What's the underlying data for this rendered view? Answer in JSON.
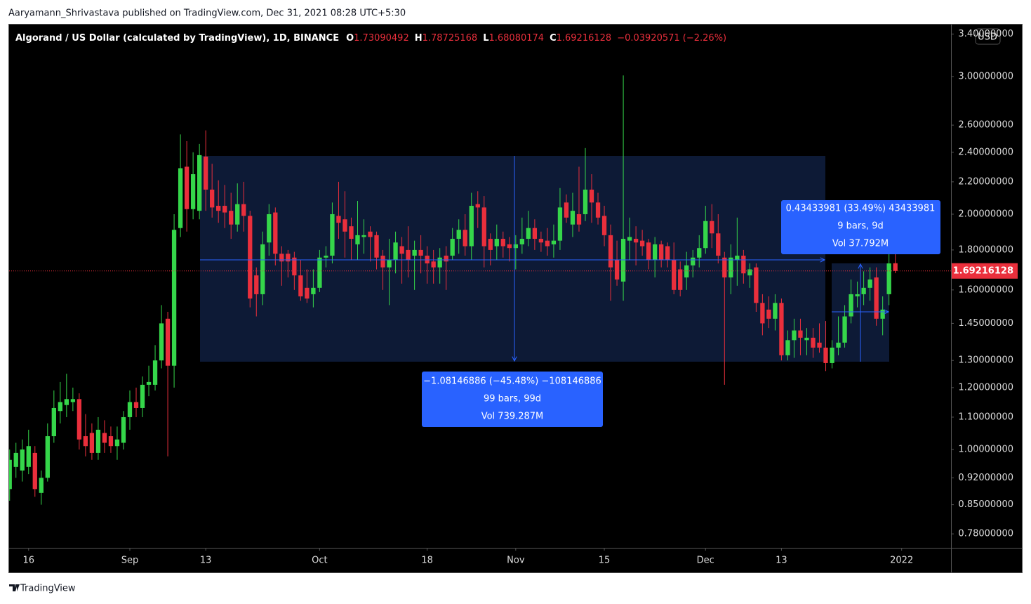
{
  "header": "Aaryamann_Shrivastava published on TradingView.com, Dec 31, 2021 08:28 UTC+5:30",
  "footer": "TradingView",
  "currency_button": "USD",
  "chart_data": {
    "type": "candlestick",
    "title": "Algorand / US Dollar (calculated by TradingView), 1D, BINANCE",
    "ohlc_labels": [
      "O",
      "H",
      "L",
      "C"
    ],
    "change": "−0.03920571 (−2.26%)",
    "up_color": "#35d64a",
    "down_color": "#ea2f3c",
    "log_scale": true,
    "grid": false,
    "ylim": [
      0.7486,
      3.496
    ],
    "yticks": [
      {
        "value": 0.78,
        "label": "0.78000000"
      },
      {
        "value": 0.85,
        "label": "0.85000000"
      },
      {
        "value": 0.92,
        "label": "0.92000000"
      },
      {
        "value": 1.0,
        "label": "1.00000000"
      },
      {
        "value": 1.1,
        "label": "1.10000000"
      },
      {
        "value": 1.2,
        "label": "1.20000000"
      },
      {
        "value": 1.3,
        "label": "1.30000000"
      },
      {
        "value": 1.45,
        "label": "1.45000000"
      },
      {
        "value": 1.6,
        "label": "1.60000000"
      },
      {
        "value": 1.8,
        "label": "1.80000000"
      },
      {
        "value": 2.0,
        "label": "2.00000000"
      },
      {
        "value": 2.2,
        "label": "2.20000000"
      },
      {
        "value": 2.4,
        "label": "2.40000000"
      },
      {
        "value": 2.6,
        "label": "2.60000000"
      },
      {
        "value": 3.0,
        "label": "3.00000000"
      },
      {
        "value": 3.4,
        "label": "3.40000000"
      }
    ],
    "xlim": [
      -0.08,
      148.8
    ],
    "xticks": [
      {
        "value": 3,
        "label": "16"
      },
      {
        "value": 19,
        "label": "Sep"
      },
      {
        "value": 31,
        "label": "13"
      },
      {
        "value": 49,
        "label": "Oct"
      },
      {
        "value": 66,
        "label": "18"
      },
      {
        "value": 80,
        "label": "Nov"
      },
      {
        "value": 94,
        "label": "15"
      },
      {
        "value": 110,
        "label": "Dec"
      },
      {
        "value": 122,
        "label": "13"
      },
      {
        "value": 141,
        "label": "2022"
      }
    ],
    "ohlc": [
      [
        0.89,
        1.0,
        0.86,
        0.97
      ],
      [
        0.95,
        1.02,
        0.92,
        0.99
      ],
      [
        0.94,
        1.03,
        0.91,
        1.0
      ],
      [
        0.95,
        1.06,
        0.93,
        1.01
      ],
      [
        0.99,
        1.01,
        0.87,
        0.89
      ],
      [
        0.88,
        0.94,
        0.85,
        0.92
      ],
      [
        0.92,
        1.08,
        0.91,
        1.04
      ],
      [
        1.04,
        1.19,
        1.02,
        1.13
      ],
      [
        1.12,
        1.22,
        1.08,
        1.15
      ],
      [
        1.14,
        1.25,
        1.1,
        1.16
      ],
      [
        1.15,
        1.2,
        1.12,
        1.16
      ],
      [
        1.16,
        1.18,
        1.0,
        1.03
      ],
      [
        1.04,
        1.11,
        0.98,
        1.01
      ],
      [
        1.05,
        1.08,
        0.97,
        0.99
      ],
      [
        0.99,
        1.1,
        0.97,
        1.06
      ],
      [
        1.05,
        1.09,
        0.99,
        1.02
      ],
      [
        1.04,
        1.07,
        0.99,
        1.01
      ],
      [
        1.01,
        1.07,
        0.97,
        1.03
      ],
      [
        1.02,
        1.12,
        1.0,
        1.1
      ],
      [
        1.1,
        1.19,
        1.06,
        1.15
      ],
      [
        1.15,
        1.2,
        1.1,
        1.13
      ],
      [
        1.13,
        1.24,
        1.1,
        1.21
      ],
      [
        1.21,
        1.28,
        1.17,
        1.22
      ],
      [
        1.21,
        1.36,
        1.19,
        1.3
      ],
      [
        1.3,
        1.53,
        1.27,
        1.45
      ],
      [
        1.47,
        1.5,
        0.98,
        1.28
      ],
      [
        1.28,
        2.0,
        1.2,
        1.91
      ],
      [
        1.92,
        2.53,
        1.87,
        2.29
      ],
      [
        2.3,
        2.48,
        1.9,
        2.03
      ],
      [
        2.03,
        2.4,
        1.97,
        2.25
      ],
      [
        2.02,
        2.46,
        1.97,
        2.38
      ],
      [
        2.37,
        2.56,
        2.02,
        2.15
      ],
      [
        2.15,
        2.32,
        1.98,
        2.04
      ],
      [
        2.05,
        2.21,
        1.95,
        2.02
      ],
      [
        2.05,
        2.18,
        1.92,
        2.01
      ],
      [
        2.02,
        2.13,
        1.86,
        1.94
      ],
      [
        1.94,
        2.19,
        1.9,
        2.06
      ],
      [
        2.06,
        2.2,
        1.9,
        1.99
      ],
      [
        1.99,
        2.02,
        1.52,
        1.56
      ],
      [
        1.67,
        1.71,
        1.48,
        1.58
      ],
      [
        1.58,
        1.9,
        1.53,
        1.83
      ],
      [
        1.84,
        2.06,
        1.77,
        2.0
      ],
      [
        2.01,
        2.04,
        1.72,
        1.78
      ],
      [
        1.78,
        1.82,
        1.62,
        1.74
      ],
      [
        1.78,
        1.8,
        1.66,
        1.74
      ],
      [
        1.76,
        1.79,
        1.6,
        1.67
      ],
      [
        1.67,
        1.75,
        1.55,
        1.57
      ],
      [
        1.61,
        1.7,
        1.54,
        1.56
      ],
      [
        1.58,
        1.7,
        1.52,
        1.61
      ],
      [
        1.61,
        1.8,
        1.59,
        1.76
      ],
      [
        1.76,
        1.82,
        1.71,
        1.77
      ],
      [
        1.77,
        2.07,
        1.73,
        2.0
      ],
      [
        1.99,
        2.2,
        1.86,
        1.95
      ],
      [
        1.97,
        2.14,
        1.76,
        1.9
      ],
      [
        1.93,
        1.98,
        1.75,
        1.86
      ],
      [
        1.83,
        2.08,
        1.75,
        1.88
      ],
      [
        1.87,
        1.97,
        1.78,
        1.88
      ],
      [
        1.9,
        1.93,
        1.74,
        1.87
      ],
      [
        1.88,
        1.9,
        1.7,
        1.76
      ],
      [
        1.77,
        1.8,
        1.6,
        1.71
      ],
      [
        1.71,
        1.86,
        1.53,
        1.75
      ],
      [
        1.75,
        1.9,
        1.68,
        1.84
      ],
      [
        1.82,
        1.87,
        1.63,
        1.78
      ],
      [
        1.8,
        1.93,
        1.66,
        1.75
      ],
      [
        1.77,
        1.85,
        1.6,
        1.8
      ],
      [
        1.8,
        1.88,
        1.68,
        1.77
      ],
      [
        1.77,
        1.82,
        1.63,
        1.73
      ],
      [
        1.74,
        1.8,
        1.63,
        1.71
      ],
      [
        1.71,
        1.81,
        1.63,
        1.76
      ],
      [
        1.77,
        1.82,
        1.6,
        1.74
      ],
      [
        1.77,
        1.92,
        1.75,
        1.86
      ],
      [
        1.86,
        1.97,
        1.78,
        1.91
      ],
      [
        1.91,
        2.0,
        1.77,
        1.82
      ],
      [
        1.82,
        2.13,
        1.75,
        2.05
      ],
      [
        2.06,
        2.14,
        1.92,
        2.04
      ],
      [
        2.04,
        2.11,
        1.71,
        1.82
      ],
      [
        1.86,
        1.89,
        1.72,
        1.8
      ],
      [
        1.82,
        1.94,
        1.75,
        1.86
      ],
      [
        1.86,
        1.9,
        1.76,
        1.82
      ],
      [
        1.83,
        1.87,
        1.74,
        1.81
      ],
      [
        1.81,
        1.88,
        1.7,
        1.83
      ],
      [
        1.83,
        1.98,
        1.78,
        1.86
      ],
      [
        1.86,
        2.02,
        1.82,
        1.92
      ],
      [
        1.92,
        1.97,
        1.8,
        1.86
      ],
      [
        1.86,
        1.9,
        1.79,
        1.84
      ],
      [
        1.85,
        1.92,
        1.77,
        1.82
      ],
      [
        1.83,
        1.94,
        1.76,
        1.85
      ],
      [
        1.85,
        2.16,
        1.8,
        2.04
      ],
      [
        2.07,
        2.12,
        1.95,
        1.98
      ],
      [
        1.94,
        2.13,
        1.87,
        2.02
      ],
      [
        2.0,
        2.3,
        1.9,
        1.94
      ],
      [
        2.0,
        2.43,
        1.96,
        2.15
      ],
      [
        2.15,
        2.25,
        1.95,
        2.07
      ],
      [
        2.07,
        2.13,
        1.94,
        1.98
      ],
      [
        1.99,
        2.05,
        1.82,
        1.88
      ],
      [
        1.88,
        1.94,
        1.55,
        1.71
      ],
      [
        1.75,
        1.85,
        1.62,
        1.65
      ],
      [
        1.64,
        3.01,
        1.55,
        1.86
      ],
      [
        1.85,
        1.98,
        1.75,
        1.87
      ],
      [
        1.86,
        1.93,
        1.72,
        1.84
      ],
      [
        1.85,
        1.91,
        1.77,
        1.82
      ],
      [
        1.84,
        1.86,
        1.7,
        1.75
      ],
      [
        1.75,
        1.87,
        1.66,
        1.83
      ],
      [
        1.83,
        1.85,
        1.71,
        1.75
      ],
      [
        1.82,
        1.84,
        1.71,
        1.75
      ],
      [
        1.75,
        1.84,
        1.58,
        1.6
      ],
      [
        1.7,
        1.74,
        1.57,
        1.6
      ],
      [
        1.66,
        1.79,
        1.6,
        1.72
      ],
      [
        1.72,
        1.8,
        1.66,
        1.76
      ],
      [
        1.76,
        1.88,
        1.71,
        1.81
      ],
      [
        1.81,
        2.05,
        1.78,
        1.96
      ],
      [
        1.96,
        2.06,
        1.81,
        1.89
      ],
      [
        1.89,
        2.0,
        1.73,
        1.77
      ],
      [
        1.76,
        1.79,
        1.21,
        1.66
      ],
      [
        1.66,
        1.83,
        1.58,
        1.76
      ],
      [
        1.75,
        1.98,
        1.62,
        1.77
      ],
      [
        1.77,
        1.8,
        1.63,
        1.68
      ],
      [
        1.67,
        1.73,
        1.61,
        1.7
      ],
      [
        1.71,
        1.73,
        1.5,
        1.54
      ],
      [
        1.54,
        1.58,
        1.4,
        1.45
      ],
      [
        1.51,
        1.57,
        1.43,
        1.47
      ],
      [
        1.47,
        1.58,
        1.42,
        1.54
      ],
      [
        1.54,
        1.56,
        1.3,
        1.32
      ],
      [
        1.32,
        1.42,
        1.3,
        1.38
      ],
      [
        1.38,
        1.47,
        1.31,
        1.42
      ],
      [
        1.42,
        1.47,
        1.32,
        1.39
      ],
      [
        1.38,
        1.43,
        1.32,
        1.39
      ],
      [
        1.39,
        1.43,
        1.31,
        1.35
      ],
      [
        1.37,
        1.45,
        1.33,
        1.35
      ],
      [
        1.35,
        1.46,
        1.26,
        1.29
      ],
      [
        1.29,
        1.38,
        1.27,
        1.35
      ],
      [
        1.35,
        1.48,
        1.32,
        1.37
      ],
      [
        1.37,
        1.53,
        1.35,
        1.48
      ],
      [
        1.48,
        1.65,
        1.45,
        1.58
      ],
      [
        1.57,
        1.64,
        1.52,
        1.58
      ],
      [
        1.58,
        1.69,
        1.53,
        1.61
      ],
      [
        1.61,
        1.71,
        1.55,
        1.65
      ],
      [
        1.66,
        1.71,
        1.44,
        1.47
      ],
      [
        1.47,
        1.57,
        1.4,
        1.51
      ],
      [
        1.58,
        1.78,
        1.53,
        1.73
      ],
      [
        1.73090492,
        1.78725168,
        1.68080174,
        1.69216128
      ]
    ],
    "measures": [
      {
        "lines": [
          "−1.08146886 (−45.48%) −108146886",
          "99 bars, 99d",
          "Vol 739.287M"
        ]
      },
      {
        "lines": [
          "0.43433981 (33.49%) 43433981",
          "9 bars, 9d",
          "Vol 37.792M"
        ]
      }
    ]
  }
}
